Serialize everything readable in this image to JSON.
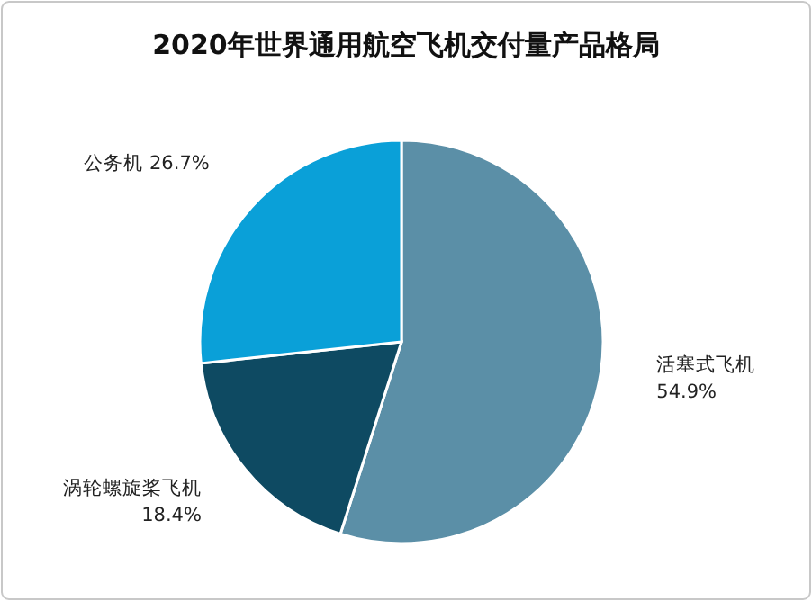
{
  "chart_data": {
    "type": "pie",
    "title": "2020年世界通用航空飞机交付量产品格局",
    "categories": [
      "活塞式飞机",
      "涡轮螺旋桨飞机",
      "公务机"
    ],
    "values": [
      54.9,
      18.4,
      26.7
    ],
    "colors": [
      "#5b8fa7",
      "#0e4a62",
      "#0aa0d8"
    ],
    "value_labels": [
      "54.9%",
      "18.4%",
      "26.7%"
    ],
    "legend": false
  }
}
